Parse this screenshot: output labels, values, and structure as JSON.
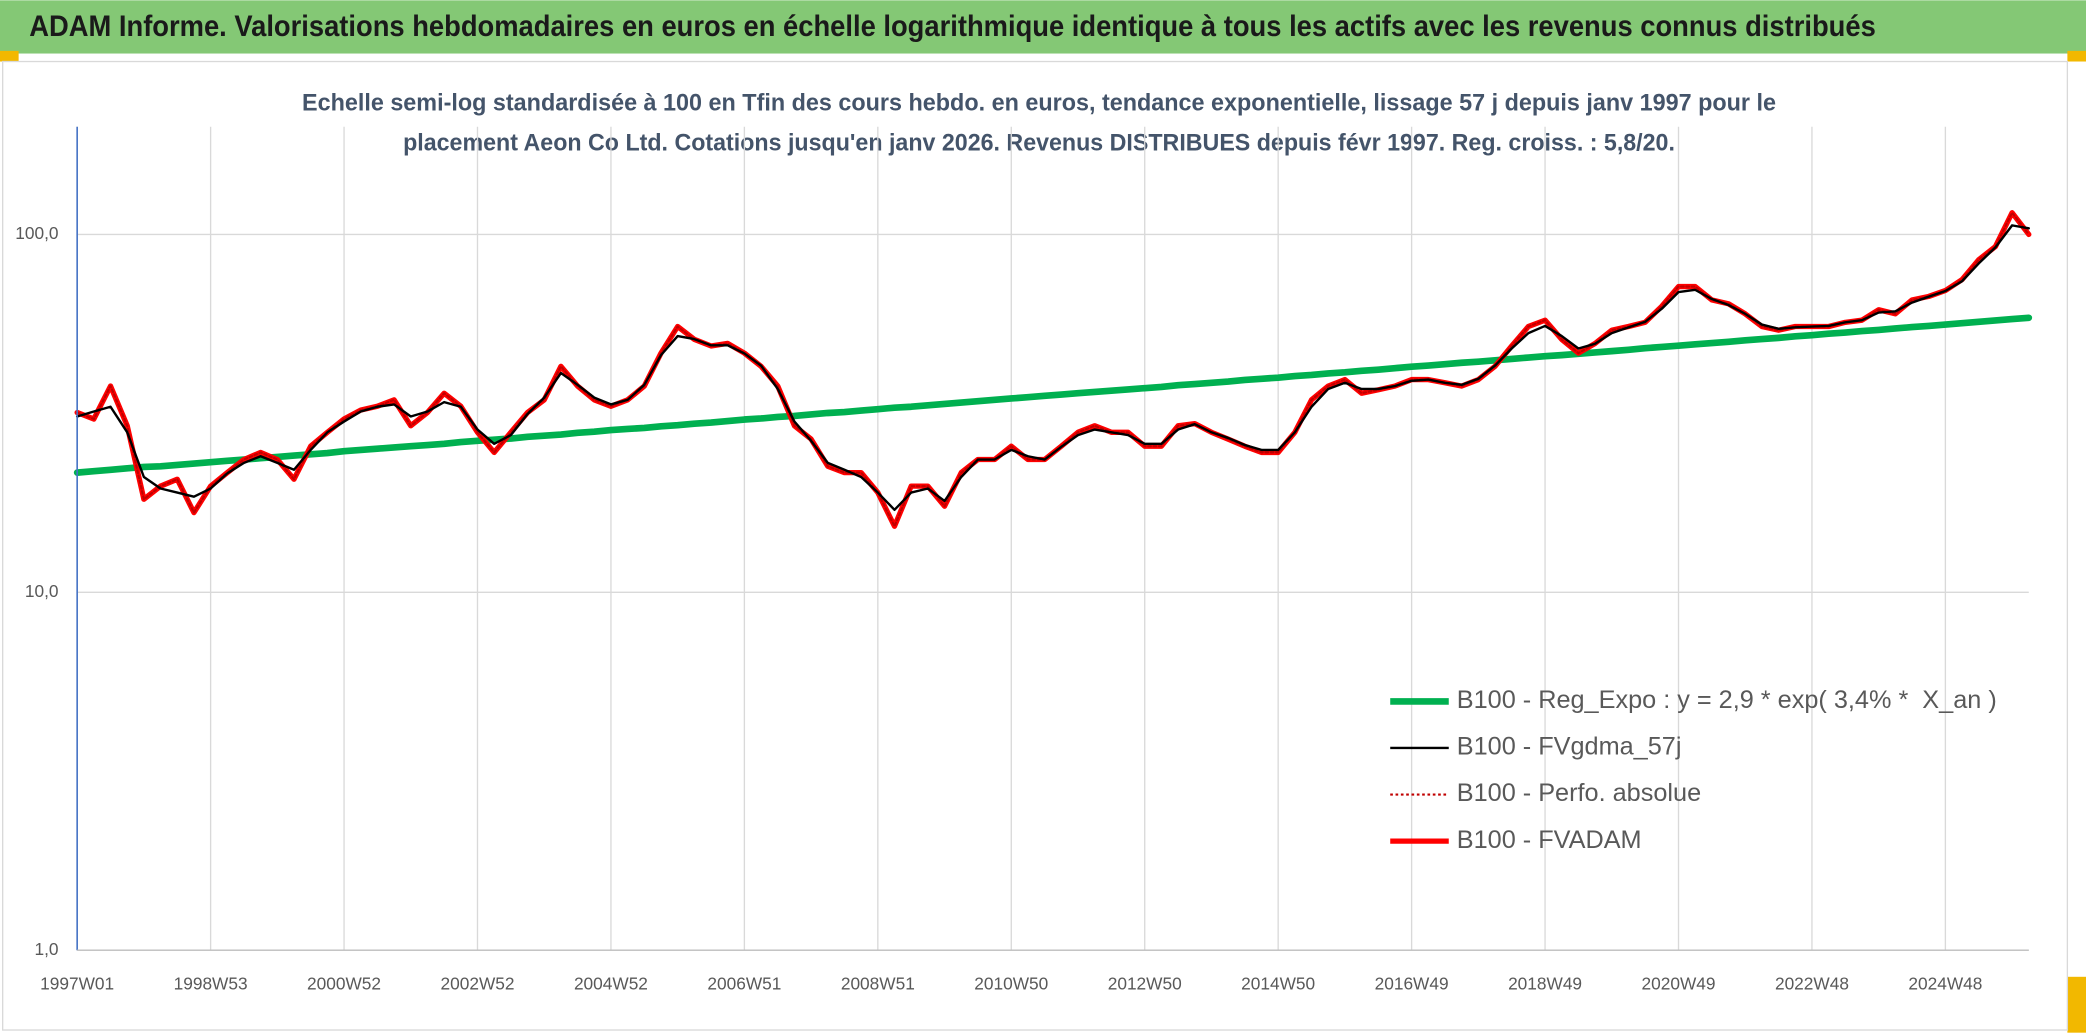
{
  "chart_data": {
    "type": "line",
    "title": "ADAM Informe. Valorisations hebdomadaires en euros en échelle logarithmique identique à tous les actifs avec les revenus connus distribués",
    "subtitle": [
      "Echelle semi-log standardisée à 100 en Tfin des cours hebdo. en euros, tendance exponentielle, lissage 57 j depuis janv 1997 pour le",
      "placement Aeon Co Ltd. Cotations jusqu'en janv 2026. Revenus DISTRIBUES depuis févr 1997. Reg. croiss. : 5,8/20."
    ],
    "categories": [
      "1997W01",
      null,
      null,
      null,
      null,
      null,
      null,
      null,
      "1998W53",
      null,
      null,
      null,
      null,
      null,
      null,
      null,
      "2000W52",
      null,
      null,
      null,
      null,
      null,
      null,
      null,
      "2002W52",
      null,
      null,
      null,
      null,
      null,
      null,
      null,
      "2004W52",
      null,
      null,
      null,
      null,
      null,
      null,
      null,
      "2006W51",
      null,
      null,
      null,
      null,
      null,
      null,
      null,
      "2008W51",
      null,
      null,
      null,
      null,
      null,
      null,
      null,
      "2010W50",
      null,
      null,
      null,
      null,
      null,
      null,
      null,
      "2012W50",
      null,
      null,
      null,
      null,
      null,
      null,
      null,
      "2014W50",
      null,
      null,
      null,
      null,
      null,
      null,
      null,
      "2016W49",
      null,
      null,
      null,
      null,
      null,
      null,
      null,
      "2018W49",
      null,
      null,
      null,
      null,
      null,
      null,
      null,
      "2020W49",
      null,
      null,
      null,
      null,
      null,
      null,
      null,
      "2022W48",
      null,
      null,
      null,
      null,
      null,
      null,
      null,
      "2024W48",
      null,
      null,
      null,
      null,
      null
    ],
    "yscale": "log",
    "ylim": [
      1,
      200
    ],
    "yticks": [
      {
        "value": 1,
        "label": "1,0"
      },
      {
        "value": 10,
        "label": "10,0"
      },
      {
        "value": 100,
        "label": "100,0"
      }
    ],
    "grid": true,
    "legend": "lower right",
    "series": [
      {
        "name": "B100 - Reg_Expo : y = 2,9 * exp( 3,4% *  X_an )",
        "color": "#00b050",
        "style": "solid",
        "values": [
          21.6,
          21.8,
          22,
          22.2,
          22.4,
          22.5,
          22.7,
          22.9,
          23.1,
          23.3,
          23.5,
          23.7,
          23.9,
          24.1,
          24.3,
          24.5,
          24.8,
          25,
          25.2,
          25.4,
          25.6,
          25.8,
          26,
          26.3,
          26.5,
          26.7,
          26.9,
          27.2,
          27.4,
          27.6,
          27.9,
          28.1,
          28.4,
          28.6,
          28.8,
          29.1,
          29.3,
          29.6,
          29.8,
          30.1,
          30.4,
          30.6,
          30.9,
          31.1,
          31.4,
          31.7,
          31.9,
          32.2,
          32.5,
          32.8,
          33,
          33.3,
          33.6,
          33.9,
          34.2,
          34.5,
          34.8,
          35.1,
          35.4,
          35.7,
          36,
          36.3,
          36.6,
          36.9,
          37.2,
          37.5,
          37.9,
          38.2,
          38.5,
          38.8,
          39.2,
          39.5,
          39.8,
          40.2,
          40.5,
          40.9,
          41.2,
          41.6,
          41.9,
          42.3,
          42.7,
          43,
          43.4,
          43.8,
          44.1,
          44.5,
          44.9,
          45.3,
          45.7,
          46,
          46.4,
          46.8,
          47.2,
          47.6,
          48.1,
          48.5,
          48.9,
          49.3,
          49.7,
          50.1,
          50.6,
          51,
          51.4,
          51.9,
          52.3,
          52.8,
          53.2,
          53.7,
          54.1,
          54.6,
          55.1,
          55.5,
          56,
          56.5,
          57,
          57.5,
          58,
          58.5
        ]
      },
      {
        "name": "B100 - FVgdma_57j",
        "color": "#000000",
        "style": "solid",
        "values": [
          31,
          32,
          33,
          28,
          21,
          19.5,
          19,
          18.5,
          19.5,
          21.5,
          23,
          24,
          23,
          22,
          25,
          28,
          30,
          32,
          33,
          33.5,
          31,
          32,
          34,
          33,
          28.5,
          26,
          27.5,
          31.5,
          35,
          41,
          38,
          35,
          33.5,
          34.5,
          38,
          46,
          52,
          51,
          49,
          49,
          46.5,
          43,
          37,
          30,
          26.5,
          23,
          22,
          21,
          19,
          17,
          19,
          19.5,
          18,
          21,
          23.5,
          23.5,
          25,
          24,
          23.5,
          25.5,
          27.5,
          28.5,
          28,
          27.5,
          26,
          26,
          28.5,
          29.5,
          28,
          27,
          25.8,
          25,
          25,
          28,
          33,
          37,
          38.5,
          37,
          37,
          37.7,
          39,
          39.3,
          38.5,
          38,
          39.5,
          43,
          48,
          53,
          55.5,
          52,
          48,
          49.5,
          53,
          55,
          57,
          62,
          69,
          70,
          66,
          63.5,
          60,
          56,
          54.5,
          55,
          55.3,
          55.5,
          56.8,
          57.6,
          60.5,
          61,
          64.5,
          67,
          69.5,
          74,
          83,
          92,
          106,
          104
        ]
      },
      {
        "name": "B100 - Perfo. absolue",
        "color": "#c00000",
        "style": "dotted",
        "values": [
          31.8,
          30.5,
          37.7,
          29.2,
          18.2,
          19.8,
          20.7,
          16.7,
          19.8,
          21.6,
          23.5,
          24.6,
          23.5,
          20.7,
          25.6,
          28,
          30.5,
          32.3,
          33.1,
          34.5,
          29.2,
          31.8,
          36,
          33.1,
          28,
          24.6,
          28,
          31.8,
          34.5,
          42.8,
          37.7,
          34.5,
          33.1,
          34.5,
          37.7,
          46.6,
          55.3,
          50.9,
          48.8,
          49.6,
          46.6,
          42.8,
          37.7,
          29.2,
          26.8,
          22.5,
          21.6,
          21.6,
          19,
          15.3,
          19.8,
          19.8,
          17.4,
          21.6,
          23.5,
          23.5,
          25.6,
          23.5,
          23.5,
          25.6,
          28,
          29.2,
          28,
          28,
          25.6,
          25.6,
          29.2,
          29.6,
          28,
          26.8,
          25.6,
          24.6,
          24.6,
          28,
          34.5,
          37.7,
          39.3,
          36,
          36.8,
          37.7,
          39.3,
          39.3,
          38.5,
          37.7,
          39.3,
          42.8,
          48.8,
          55.3,
          57.6,
          50.9,
          46.6,
          49.6,
          54,
          55.3,
          56.8,
          63,
          71.5,
          71.5,
          65.6,
          64,
          60,
          55.3,
          54,
          55.3,
          55.3,
          55.3,
          56.8,
          57.6,
          61.6,
          60,
          65.6,
          67.1,
          69.7,
          74.8,
          85,
          92.5,
          115,
          100
        ]
      },
      {
        "name": "B100 - FVADAM",
        "color": "#ff0000",
        "style": "solid",
        "values": [
          31.8,
          30.5,
          37.7,
          29.2,
          18.2,
          19.8,
          20.7,
          16.7,
          19.8,
          21.6,
          23.5,
          24.6,
          23.5,
          20.7,
          25.6,
          28,
          30.5,
          32.3,
          33.1,
          34.5,
          29.2,
          31.8,
          36,
          33.1,
          28,
          24.6,
          28,
          31.8,
          34.5,
          42.8,
          37.7,
          34.5,
          33.1,
          34.5,
          37.7,
          46.6,
          55.3,
          50.9,
          48.8,
          49.6,
          46.6,
          42.8,
          37.7,
          29.2,
          26.8,
          22.5,
          21.6,
          21.6,
          19,
          15.3,
          19.8,
          19.8,
          17.4,
          21.6,
          23.5,
          23.5,
          25.6,
          23.5,
          23.5,
          25.6,
          28,
          29.2,
          28,
          28,
          25.6,
          25.6,
          29.2,
          29.6,
          28,
          26.8,
          25.6,
          24.6,
          24.6,
          28,
          34.5,
          37.7,
          39.3,
          36,
          36.8,
          37.7,
          39.3,
          39.3,
          38.5,
          37.7,
          39.3,
          42.8,
          48.8,
          55.3,
          57.6,
          50.9,
          46.6,
          49.6,
          54,
          55.3,
          56.8,
          63,
          71.5,
          71.5,
          65.6,
          64,
          60,
          55.3,
          54,
          55.3,
          55.3,
          55.3,
          56.8,
          57.6,
          61.6,
          60,
          65.6,
          67.1,
          69.7,
          74.8,
          85,
          92.5,
          115,
          100
        ]
      }
    ]
  }
}
